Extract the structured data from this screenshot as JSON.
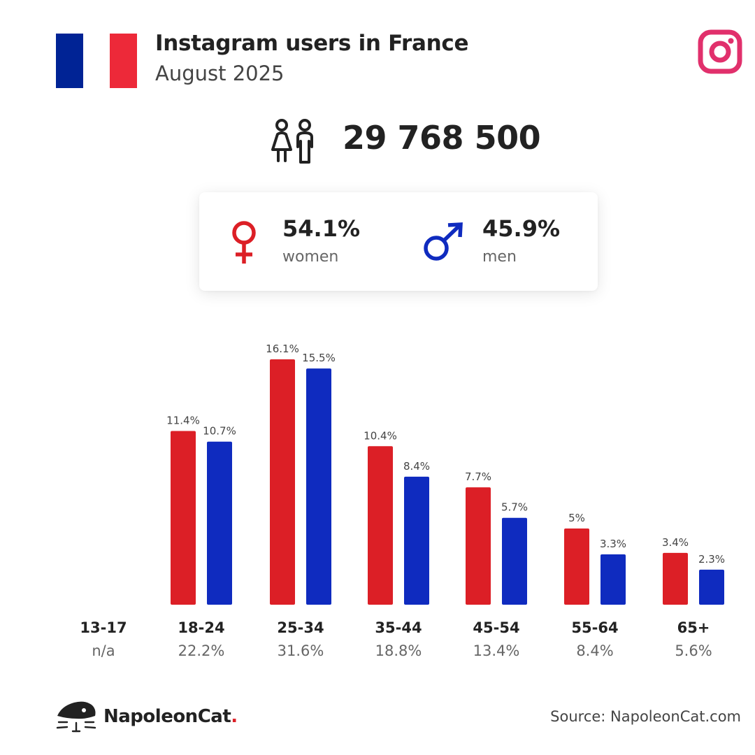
{
  "header": {
    "title": "Instagram users in France",
    "subtitle": "August 2025",
    "flag_colors": [
      "#002395",
      "#ffffff",
      "#ed2939"
    ]
  },
  "summary": {
    "total_users": "29 768 500",
    "users_icon": "users-icon"
  },
  "gender": {
    "women": {
      "percent": "54.1%",
      "label": "women",
      "icon": "female-icon",
      "color": "#dc1f26"
    },
    "men": {
      "percent": "45.9%",
      "label": "men",
      "icon": "male-icon",
      "color": "#0f2bbf"
    }
  },
  "chart_data": {
    "type": "bar",
    "categories": [
      "13-17",
      "18-24",
      "25-34",
      "35-44",
      "45-54",
      "55-64",
      "65+"
    ],
    "category_totals": [
      "n/a",
      "22.2%",
      "31.6%",
      "18.8%",
      "13.4%",
      "8.4%",
      "5.6%"
    ],
    "series": [
      {
        "color": "#dc1f26",
        "values": [
          null,
          11.4,
          16.1,
          10.4,
          7.7,
          5,
          3.4
        ],
        "labels": [
          "",
          "11.4%",
          "16.1%",
          "10.4%",
          "7.7%",
          "5%",
          "3.4%"
        ]
      },
      {
        "color": "#0f2bbf",
        "values": [
          null,
          10.7,
          15.5,
          8.4,
          5.7,
          3.3,
          2.3
        ],
        "labels": [
          "",
          "10.7%",
          "15.5%",
          "8.4%",
          "5.7%",
          "3.3%",
          "2.3%"
        ]
      }
    ],
    "ylim": [
      0,
      16.1
    ]
  },
  "footer": {
    "brand_name": "NapoleonCat",
    "brand_dot": ".",
    "source": "Source: NapoleonCat.com",
    "logo_icon": "napoleoncat-logo-icon"
  },
  "brand_icon": "instagram-icon"
}
